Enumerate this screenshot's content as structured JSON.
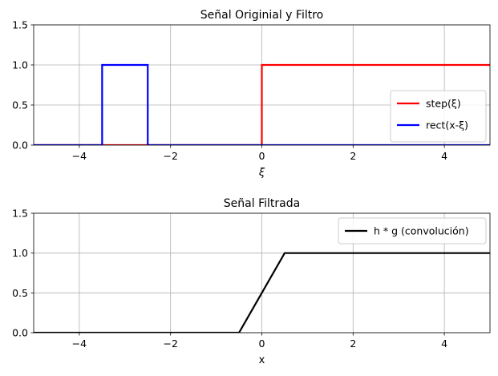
{
  "chart_data": [
    {
      "type": "line",
      "title": "Señal Originial y Filtro",
      "xlabel": "ξ",
      "ylabel": "",
      "xlim": [
        -5,
        5
      ],
      "ylim": [
        0,
        1.5
      ],
      "xticks": [
        -4,
        -2,
        0,
        2,
        4
      ],
      "yticks": [
        0.0,
        0.5,
        1.0,
        1.5
      ],
      "xtick_labels": [
        "−4",
        "−2",
        "0",
        "2",
        "4"
      ],
      "ytick_labels": [
        "0.0",
        "0.5",
        "1.0",
        "1.5"
      ],
      "grid": true,
      "legend_position": "lower-right",
      "series": [
        {
          "name": "step(ξ)",
          "color": "#ff0000",
          "x": [
            -5,
            0,
            0,
            5
          ],
          "y": [
            0,
            0,
            1,
            1
          ]
        },
        {
          "name": "rect(x-ξ)",
          "color": "#0000ff",
          "x": [
            -5,
            -3.5,
            -3.5,
            -2.5,
            -2.5,
            5
          ],
          "y": [
            0,
            0,
            1,
            1,
            0,
            0
          ]
        }
      ]
    },
    {
      "type": "line",
      "title": "Señal Filtrada",
      "xlabel": "x",
      "ylabel": "",
      "xlim": [
        -5,
        5
      ],
      "ylim": [
        0,
        1.5
      ],
      "xticks": [
        -4,
        -2,
        0,
        2,
        4
      ],
      "yticks": [
        0.0,
        0.5,
        1.0,
        1.5
      ],
      "xtick_labels": [
        "−4",
        "−2",
        "0",
        "2",
        "4"
      ],
      "ytick_labels": [
        "0.0",
        "0.5",
        "1.0",
        "1.5"
      ],
      "grid": true,
      "legend_position": "upper-right",
      "series": [
        {
          "name": "h * g (convolución)",
          "color": "#000000",
          "x": [
            -5,
            -0.5,
            0.5,
            5
          ],
          "y": [
            0,
            0,
            1,
            1
          ]
        }
      ]
    }
  ]
}
